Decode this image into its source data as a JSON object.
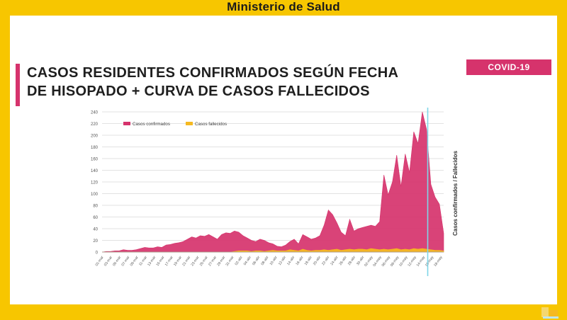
{
  "header": {
    "title": "Ministerio de Salud"
  },
  "slide": {
    "title_line1": "CASOS RESIDENTES CONFIRMADOS SEGÚN FECHA",
    "title_line2": "DE HISOPADO + CURVA DE CASOS FALLECIDOS",
    "badge": "COVID-19"
  },
  "colors": {
    "accent": "#d6336c",
    "deaths": "#f5b921",
    "marker": "#7fd6e8",
    "background": "#f7c600"
  },
  "chart_data": {
    "type": "area",
    "title": "",
    "xlabel": "",
    "ylabel": "Casos confirmados / Fallecidos",
    "ylim": [
      0,
      240
    ],
    "yticks": [
      0,
      20,
      40,
      60,
      80,
      100,
      120,
      140,
      160,
      180,
      200,
      220,
      240
    ],
    "grid": true,
    "legend": "top-left",
    "x_labels": [
      "01-mar",
      "03-mar",
      "05-mar",
      "07-mar",
      "09-mar",
      "11-mar",
      "13-mar",
      "15-mar",
      "17-mar",
      "19-mar",
      "21-mar",
      "23-mar",
      "25-mar",
      "27-mar",
      "29-mar",
      "31-mar",
      "02-abr",
      "04-abr",
      "06-abr",
      "08-abr",
      "10-abr",
      "12-abr",
      "14-abr",
      "16-abr",
      "18-abr",
      "20-abr",
      "22-abr",
      "24-abr",
      "26-abr",
      "28-abr",
      "30-abr",
      "02-may",
      "04-may",
      "06-may",
      "08-may",
      "10-may",
      "12-may",
      "14-may",
      "16-may",
      "18-may"
    ],
    "series": [
      {
        "name": "Casos confirmados",
        "color": "#d6336c",
        "values": [
          0,
          1,
          1,
          2,
          2,
          4,
          3,
          3,
          4,
          6,
          8,
          7,
          7,
          9,
          8,
          12,
          13,
          15,
          16,
          18,
          22,
          26,
          24,
          28,
          27,
          30,
          26,
          22,
          30,
          33,
          32,
          36,
          34,
          28,
          24,
          20,
          18,
          22,
          20,
          16,
          14,
          10,
          9,
          12,
          18,
          22,
          14,
          30,
          26,
          22,
          24,
          28,
          46,
          72,
          64,
          50,
          34,
          28,
          56,
          36,
          40,
          42,
          44,
          46,
          44,
          52,
          132,
          98,
          120,
          166,
          112,
          168,
          136,
          206,
          186,
          240,
          210,
          116,
          94,
          82,
          32
        ]
      },
      {
        "name": "Casos fallecidos",
        "color": "#f5b921",
        "values": [
          0,
          0,
          0,
          0,
          0,
          0,
          0,
          0,
          0,
          0,
          0,
          0,
          0,
          0,
          0,
          0,
          0,
          0,
          0,
          0,
          0,
          0,
          0,
          0,
          0,
          0,
          0,
          0,
          0,
          0,
          0,
          1,
          2,
          2,
          2,
          1,
          2,
          2,
          1,
          2,
          3,
          2,
          2,
          2,
          4,
          3,
          2,
          5,
          3,
          2,
          3,
          3,
          4,
          3,
          4,
          5,
          3,
          4,
          5,
          4,
          5,
          5,
          4,
          6,
          5,
          4,
          5,
          4,
          5,
          6,
          4,
          5,
          4,
          6,
          5,
          6,
          5,
          4,
          3,
          3,
          2
        ]
      }
    ],
    "marker_label": "14-may"
  }
}
